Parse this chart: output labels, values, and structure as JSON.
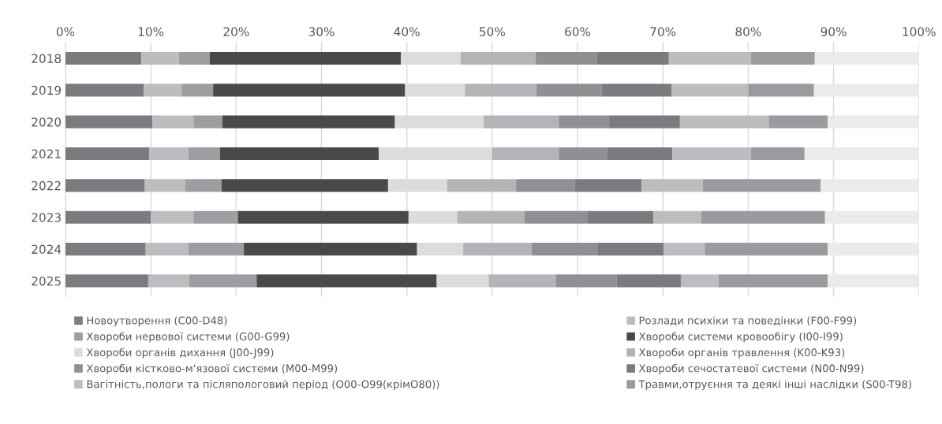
{
  "chart_data": {
    "type": "bar",
    "orientation": "horizontal",
    "stacked": true,
    "categories": [
      "2018",
      "2019",
      "2020",
      "2021",
      "2022",
      "2023",
      "2024",
      "2025"
    ],
    "xlim": [
      0,
      100
    ],
    "xticks": [
      {
        "value": 0,
        "label": "0%"
      },
      {
        "value": 10,
        "label": "10%"
      },
      {
        "value": 20,
        "label": "20%"
      },
      {
        "value": 30,
        "label": "30%"
      },
      {
        "value": 40,
        "label": "40%"
      },
      {
        "value": 50,
        "label": "50%"
      },
      {
        "value": 60,
        "label": "60%"
      },
      {
        "value": 70,
        "label": "70%"
      },
      {
        "value": 80,
        "label": "80%"
      },
      {
        "value": 90,
        "label": "90%"
      },
      {
        "value": 100,
        "label": "100%"
      }
    ],
    "grid": "x",
    "legend": "bottom",
    "series": [
      {
        "name": "Новоутворення (C00-D48)",
        "color": "#7b7c80",
        "values": [
          8.9,
          9.2,
          10.2,
          9.8,
          9.3,
          10.0,
          9.4,
          9.7
        ]
      },
      {
        "name": "Розлади психіки та поведінки (F00-F99)",
        "color": "#bcbdc0",
        "values": [
          4.4,
          4.4,
          4.8,
          4.6,
          4.7,
          5.0,
          5.0,
          4.8
        ]
      },
      {
        "name": "Хвороби нервової системи (G00-G99)",
        "color": "#9d9ea2",
        "values": [
          3.6,
          3.7,
          3.4,
          3.7,
          4.3,
          5.2,
          6.5,
          7.9
        ]
      },
      {
        "name": "Хвороби системи кровообігу (I00-I99)",
        "color": "#48494b",
        "values": [
          22.4,
          22.5,
          20.2,
          18.6,
          19.5,
          20.0,
          20.3,
          21.1
        ]
      },
      {
        "name": "Хвороби органів дихання (J00-J99)",
        "color": "#dcdcdd",
        "values": [
          7.0,
          7.0,
          10.4,
          13.3,
          6.9,
          5.7,
          5.4,
          6.1
        ]
      },
      {
        "name": "Хвороби органів травлення (K00-K93)",
        "color": "#b3b4b7",
        "values": [
          8.8,
          8.4,
          8.8,
          7.8,
          8.1,
          7.9,
          8.0,
          7.9
        ]
      },
      {
        "name": "Хвороби кістково-м'язової системи (M00-M99)",
        "color": "#8f9094",
        "values": [
          7.2,
          7.6,
          5.9,
          5.7,
          6.9,
          7.4,
          7.8,
          7.1
        ]
      },
      {
        "name": "Хвороби сечостатевої системи (N00-N99)",
        "color": "#7a7b7f",
        "values": [
          8.4,
          8.2,
          8.3,
          7.6,
          7.8,
          7.7,
          7.7,
          7.5
        ]
      },
      {
        "name": "Вагітність,пологи та післяпологовий період (O00-O99(крімO80))",
        "color": "#bcbdc0",
        "values": [
          9.6,
          9.0,
          10.4,
          9.2,
          7.2,
          5.6,
          4.8,
          4.4
        ]
      },
      {
        "name": "Травми,отруєння та деякі інші наслідки (S00-T98)",
        "color": "#9a9b9f",
        "values": [
          7.5,
          7.7,
          6.9,
          6.3,
          13.8,
          14.5,
          14.4,
          12.8
        ]
      },
      {
        "color": "#ebebea",
        "values": [
          12.2,
          12.3,
          10.7,
          13.4,
          11.5,
          11.0,
          10.7,
          10.7
        ]
      }
    ]
  }
}
